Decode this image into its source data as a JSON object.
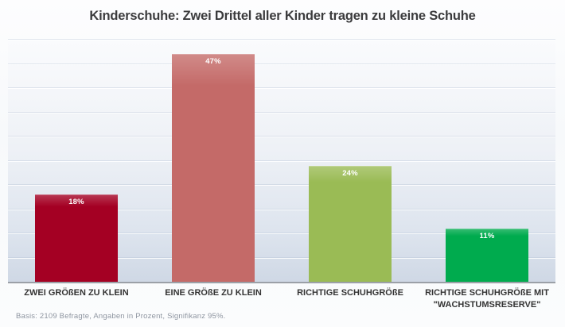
{
  "chart_data": {
    "type": "bar",
    "title": "Kinderschuhe: Zwei Drittel aller Kinder tragen zu kleine Schuhe",
    "categories": [
      "ZWEI GRÖßEN ZU KLEIN",
      "EINE GRÖßE ZU KLEIN",
      "RICHTIGE SCHUHGRÖßE",
      "RICHTIGE SCHUHGRÖßE MIT \"WACHSTUMSRESERVE\""
    ],
    "values": [
      18,
      47,
      24,
      11
    ],
    "value_labels": [
      "18%",
      "47%",
      "24%",
      "11%"
    ],
    "bar_colors": [
      "#a40023",
      "#c46a68",
      "#9abb55",
      "#00ab4e"
    ],
    "xlabel": "",
    "ylabel": "",
    "ylim": [
      0,
      50
    ],
    "grid": true,
    "grid_step": 5,
    "legend": false,
    "footnote": "Basis: 2109 Befragte, Angaben in Prozent, Signifikanz 95%."
  }
}
